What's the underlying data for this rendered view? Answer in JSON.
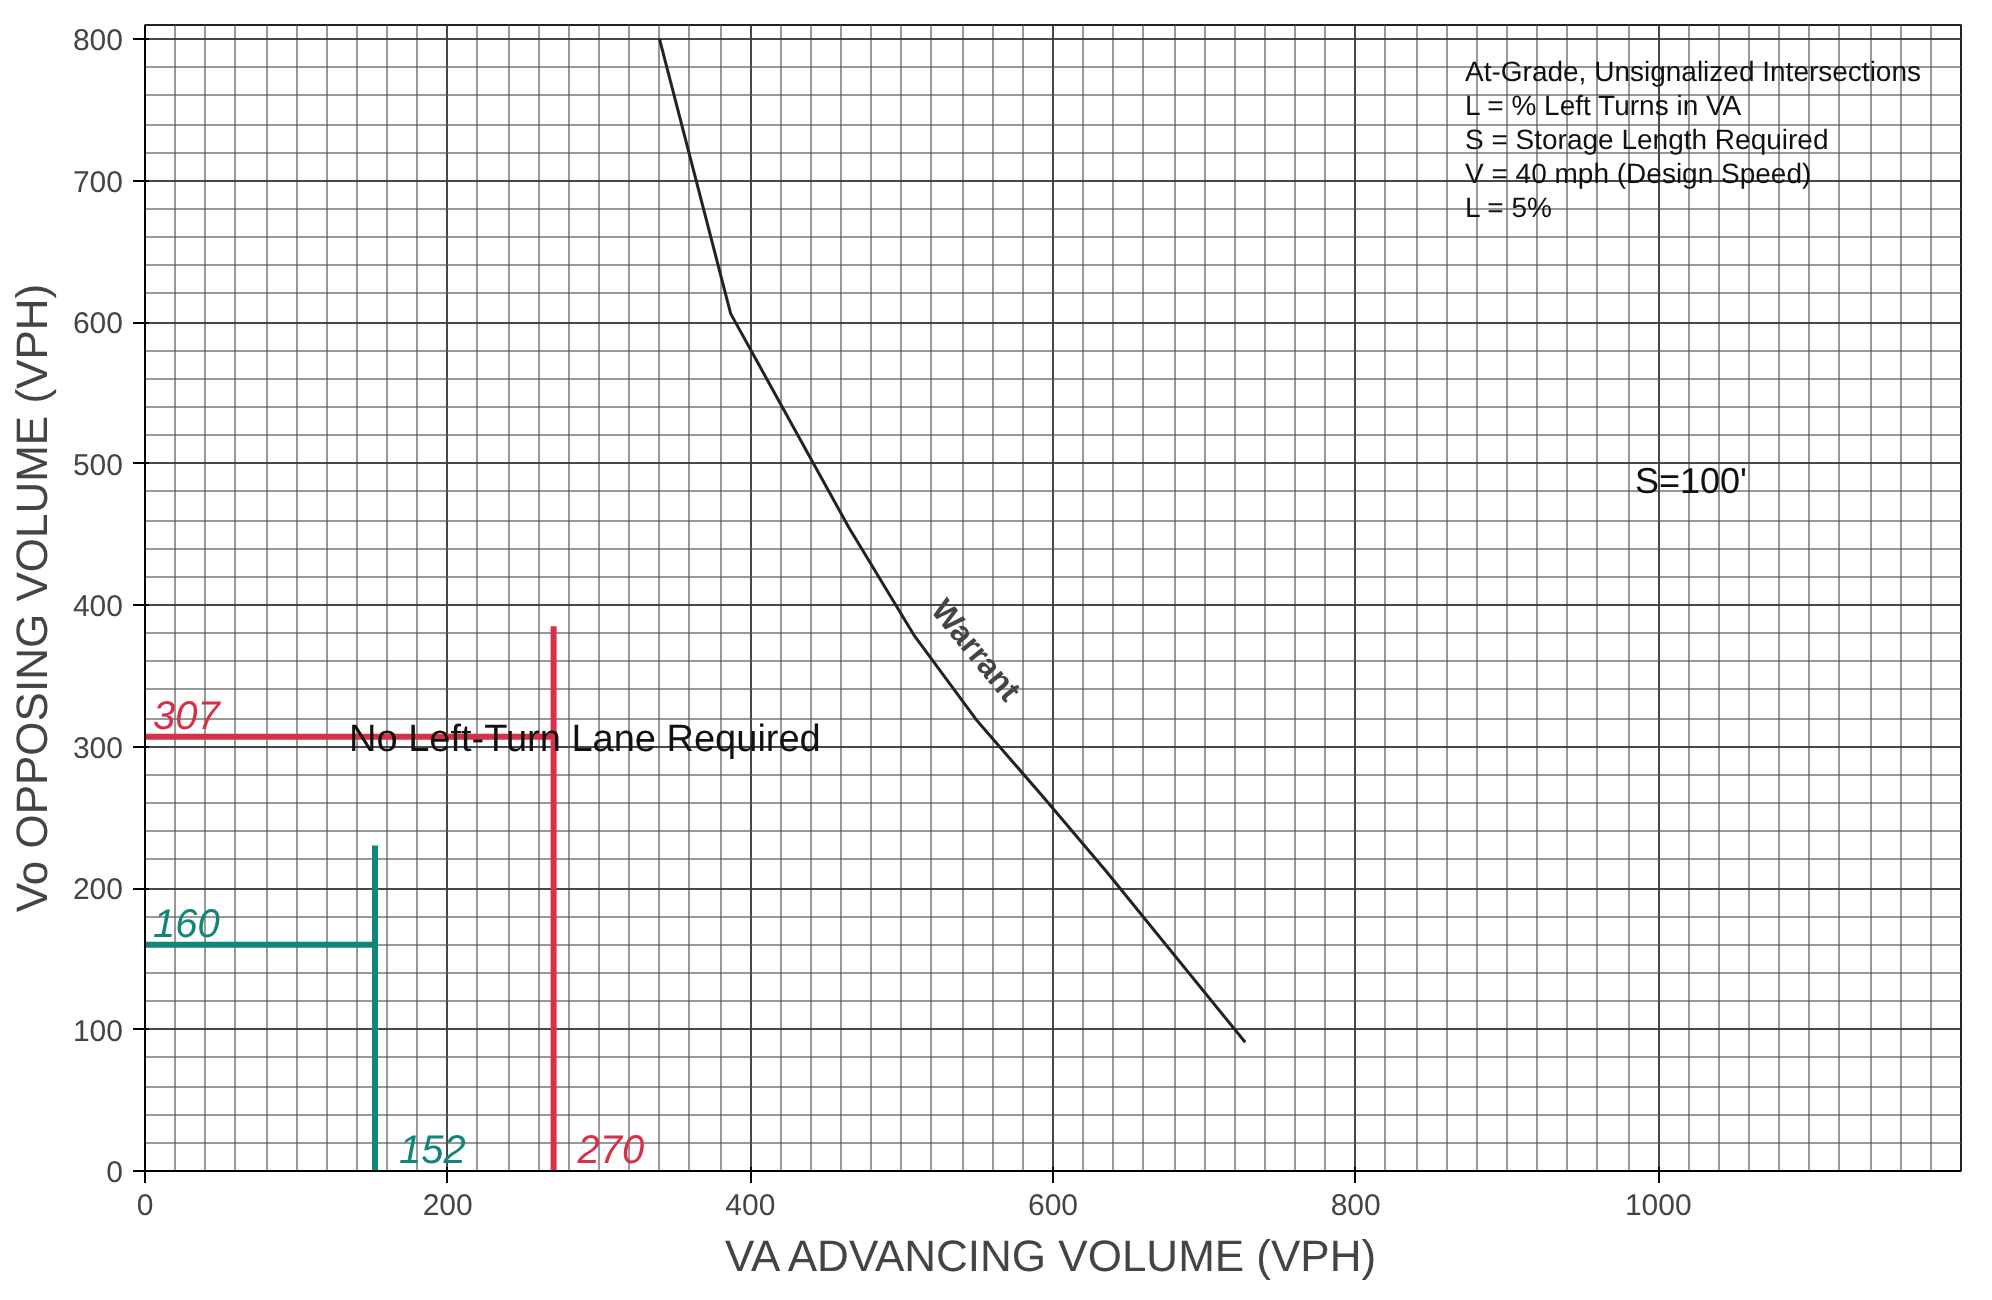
{
  "chart_data": {
    "type": "line",
    "xlabel": "VA ADVANCING VOLUME (VPH)",
    "ylabel": "Vo OPPOSING VOLUME (VPH)",
    "xlim": [
      0,
      1200
    ],
    "ylim": [
      0,
      810
    ],
    "xticks": [
      0,
      200,
      400,
      600,
      800,
      1000
    ],
    "yticks": [
      0,
      100,
      200,
      300,
      400,
      500,
      600,
      700,
      800
    ],
    "grid": true,
    "marker": "none",
    "line_style": "solid",
    "series": [
      {
        "name": "Warrant",
        "color": "#222222",
        "x": [
          340,
          387,
          465,
          508,
          550,
          593,
          635,
          727
        ],
        "values": [
          800,
          606,
          455,
          379,
          318,
          265,
          212,
          91
        ]
      },
      {
        "color": "#d9304a",
        "x": [
          0,
          270
        ],
        "values": [
          307,
          307
        ]
      },
      {
        "color": "#d9304a",
        "x": [
          270,
          270
        ],
        "values": [
          0,
          385
        ]
      },
      {
        "color": "#10857a",
        "x": [
          0,
          152
        ],
        "values": [
          160,
          160
        ]
      },
      {
        "color": "#10857a",
        "x": [
          152,
          152
        ],
        "values": [
          0,
          230
        ]
      }
    ],
    "annotations": [
      "At-Grade, Unsignalized Intersections\nL = % Left Turns in VA\nS = Storage Length Required\nV = 40 mph (Design Speed)\nL = 5%",
      "S=100'",
      "No Left-Turn Lane Required",
      {
        "text": "307",
        "x": 0,
        "y": 307
      },
      {
        "text": "270",
        "x": 270,
        "y": 0
      },
      {
        "text": "160",
        "x": 0,
        "y": 160
      },
      {
        "text": "152",
        "x": 152,
        "y": 0
      }
    ]
  }
}
